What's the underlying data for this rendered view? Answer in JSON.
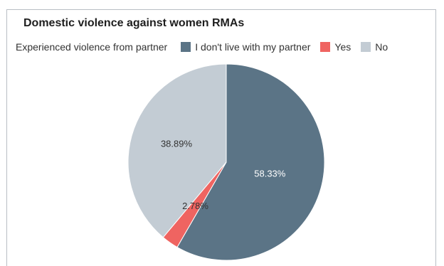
{
  "chart_data": {
    "type": "pie",
    "title": "Domestic violence against women RMAs",
    "legend_title": "Experienced violence from partner",
    "legend_position": "top",
    "series": [
      {
        "name": "I don't live with my partner",
        "value": 58.33,
        "label": "58.33%",
        "color": "#5b7486",
        "label_color": "#ffffff"
      },
      {
        "name": "Yes",
        "value": 2.78,
        "label": "2.78%",
        "color": "#ef6461",
        "label_color": "#333333"
      },
      {
        "name": "No",
        "value": 38.89,
        "label": "38.89%",
        "color": "#c3ccd4",
        "label_color": "#333333"
      }
    ]
  }
}
